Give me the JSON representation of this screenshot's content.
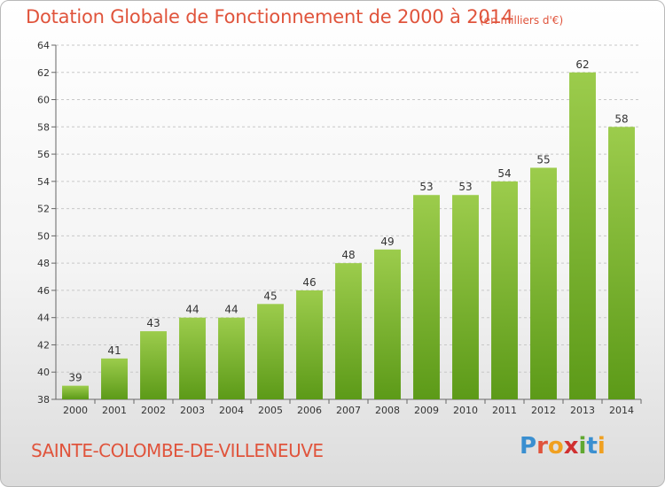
{
  "header": {
    "title": "Dotation Globale de Fonctionnement de 2000 à 2014",
    "unit": "(en milliers d'€)"
  },
  "footer": {
    "commune": "SAINTE-COLOMBE-DE-VILLENEUVE",
    "logo_letters": [
      "P",
      "r",
      "o",
      "x",
      "i",
      "t",
      "i"
    ],
    "logo_colors": [
      "#3a8fd0",
      "#e0543c",
      "#f0a020",
      "#d03030",
      "#60a830",
      "#3a8fd0",
      "#f0a020"
    ]
  },
  "chart_data": {
    "type": "bar",
    "title": "Dotation Globale de Fonctionnement de 2000 à 2014",
    "xlabel": "",
    "ylabel": "",
    "categories": [
      "2000",
      "2001",
      "2002",
      "2003",
      "2004",
      "2005",
      "2006",
      "2007",
      "2008",
      "2009",
      "2010",
      "2011",
      "2012",
      "2013",
      "2014"
    ],
    "values": [
      39,
      41,
      43,
      44,
      44,
      45,
      46,
      48,
      49,
      53,
      53,
      54,
      55,
      62,
      58
    ],
    "ylim": [
      38,
      64
    ],
    "yticks": [
      38,
      40,
      42,
      44,
      46,
      48,
      50,
      52,
      54,
      56,
      58,
      60,
      62,
      64
    ],
    "grid": true,
    "bar_color_top": "#9ccc4c",
    "bar_color_bottom": "#5c9a18",
    "grid_color": "#c8c8c8"
  }
}
